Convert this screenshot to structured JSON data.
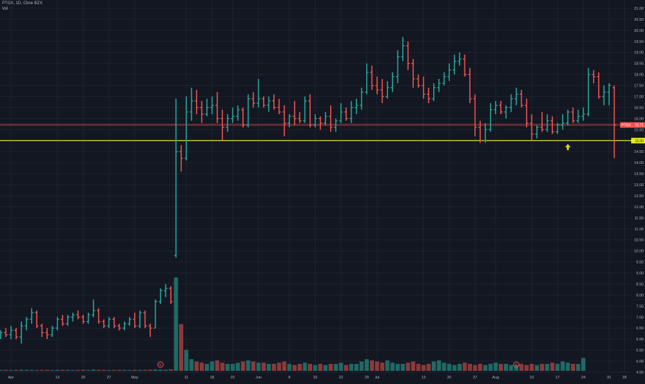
{
  "header": {
    "symbol_line": "PTGX, 1D, Cboe BZX",
    "volume_label": "Vol"
  },
  "colors": {
    "background": "#131722",
    "up": "#26a69a",
    "down": "#ef5350",
    "up_volume": "#1f6a65",
    "down_volume": "#8b3a3a",
    "support_line": "#e8ec1a",
    "grid": "#1f2331",
    "axis_text": "#b2b5be",
    "earnings_marker": "#ef5350"
  },
  "chart_data": {
    "type": "ohlc",
    "title": "",
    "y_axis": {
      "position": "right",
      "ylim": [
        4.5,
        21.25
      ],
      "ticks": [
        4.5,
        5.0,
        5.5,
        6.0,
        6.5,
        7.0,
        7.5,
        8.0,
        8.5,
        9.0,
        9.5,
        10.0,
        10.5,
        11.0,
        11.5,
        12.0,
        12.5,
        13.0,
        13.5,
        14.0,
        14.5,
        15.0,
        15.5,
        16.0,
        16.5,
        17.0,
        17.5,
        18.0,
        18.5,
        19.0,
        19.5,
        20.0,
        20.5,
        21.0
      ]
    },
    "x_axis": {
      "tick_labels": [
        {
          "label": "Apr",
          "bar": 2
        },
        {
          "label": "13",
          "bar": 11
        },
        {
          "label": "20",
          "bar": 16
        },
        {
          "label": "27",
          "bar": 21
        },
        {
          "label": "May",
          "bar": 26
        },
        {
          "label": "11",
          "bar": 36
        },
        {
          "label": "18",
          "bar": 41
        },
        {
          "label": "22",
          "bar": 45
        },
        {
          "label": "Jun",
          "bar": 50
        },
        {
          "label": "8",
          "bar": 56
        },
        {
          "label": "15",
          "bar": 61
        },
        {
          "label": "22",
          "bar": 66
        },
        {
          "label": "29",
          "bar": 71
        },
        {
          "label": "Jul",
          "bar": 73
        },
        {
          "label": "13",
          "bar": 82
        },
        {
          "label": "20",
          "bar": 87
        },
        {
          "label": "27",
          "bar": 92
        },
        {
          "label": "Aug",
          "bar": 96
        },
        {
          "label": "10",
          "bar": 103
        },
        {
          "label": "17",
          "bar": 108
        },
        {
          "label": "24",
          "bar": 113
        },
        {
          "label": "31",
          "bar": 118
        },
        {
          "label": "28",
          "bar": 121
        }
      ]
    },
    "ohlc": [
      [
        6.2,
        6.4,
        6.0,
        6.3
      ],
      [
        6.3,
        6.5,
        6.1,
        6.2
      ],
      [
        6.2,
        6.6,
        6.0,
        6.4
      ],
      [
        6.4,
        6.5,
        6.0,
        6.1
      ],
      [
        6.1,
        6.8,
        5.8,
        6.6
      ],
      [
        6.6,
        7.0,
        6.4,
        6.9
      ],
      [
        6.9,
        7.4,
        6.7,
        7.2
      ],
      [
        7.2,
        7.3,
        6.5,
        6.6
      ],
      [
        6.6,
        6.7,
        6.1,
        6.3
      ],
      [
        6.3,
        6.5,
        6.0,
        6.2
      ],
      [
        6.2,
        6.6,
        6.1,
        6.5
      ],
      [
        6.5,
        7.0,
        6.4,
        6.9
      ],
      [
        6.9,
        7.1,
        6.6,
        6.7
      ],
      [
        6.7,
        7.1,
        6.6,
        7.0
      ],
      [
        7.0,
        7.2,
        6.8,
        7.1
      ],
      [
        7.1,
        7.3,
        6.9,
        7.0
      ],
      [
        7.0,
        7.1,
        6.7,
        6.8
      ],
      [
        6.8,
        7.2,
        6.7,
        7.1
      ],
      [
        7.1,
        7.8,
        7.0,
        7.3
      ],
      [
        7.3,
        7.4,
        6.7,
        6.8
      ],
      [
        6.8,
        6.9,
        6.5,
        6.6
      ],
      [
        6.6,
        7.0,
        6.5,
        6.9
      ],
      [
        6.9,
        7.0,
        6.5,
        6.6
      ],
      [
        6.6,
        6.7,
        6.4,
        6.5
      ],
      [
        6.5,
        6.8,
        6.4,
        6.7
      ],
      [
        6.7,
        7.0,
        6.6,
        6.9
      ],
      [
        6.9,
        7.2,
        6.5,
        6.6
      ],
      [
        6.6,
        7.3,
        6.5,
        7.2
      ],
      [
        7.2,
        7.3,
        6.5,
        6.6
      ],
      [
        6.6,
        6.7,
        6.1,
        6.5
      ],
      [
        6.5,
        7.8,
        6.5,
        7.7
      ],
      [
        7.7,
        8.3,
        7.6,
        8.2
      ],
      [
        8.2,
        8.5,
        7.9,
        8.3
      ],
      [
        8.3,
        8.4,
        7.6,
        7.7
      ],
      [
        9.8,
        16.9,
        9.7,
        14.5
      ],
      [
        14.5,
        14.8,
        13.6,
        14.2
      ],
      [
        14.2,
        17.0,
        14.1,
        16.3
      ],
      [
        16.3,
        17.4,
        15.9,
        16.8
      ],
      [
        16.8,
        17.3,
        16.2,
        16.5
      ],
      [
        16.5,
        16.8,
        15.8,
        16.2
      ],
      [
        16.2,
        16.9,
        16.1,
        16.5
      ],
      [
        16.5,
        17.0,
        16.2,
        16.6
      ],
      [
        16.6,
        17.2,
        15.8,
        16.0
      ],
      [
        16.0,
        16.4,
        15.0,
        15.6
      ],
      [
        15.6,
        16.2,
        15.4,
        16.0
      ],
      [
        16.0,
        16.5,
        15.8,
        16.1
      ],
      [
        16.1,
        16.6,
        15.9,
        16.4
      ],
      [
        16.4,
        16.5,
        15.6,
        15.7
      ],
      [
        15.7,
        17.1,
        15.6,
        16.9
      ],
      [
        16.9,
        17.2,
        16.5,
        16.7
      ],
      [
        16.7,
        17.8,
        16.5,
        16.9
      ],
      [
        16.9,
        17.0,
        16.5,
        16.6
      ],
      [
        16.6,
        17.0,
        16.3,
        16.8
      ],
      [
        16.8,
        17.1,
        16.4,
        16.5
      ],
      [
        16.5,
        16.9,
        16.2,
        16.3
      ],
      [
        16.3,
        16.6,
        15.2,
        15.8
      ],
      [
        15.8,
        16.2,
        15.6,
        16.1
      ],
      [
        16.1,
        16.8,
        15.7,
        16.0
      ],
      [
        16.0,
        16.3,
        15.8,
        15.9
      ],
      [
        15.9,
        17.0,
        15.8,
        16.8
      ],
      [
        16.8,
        17.1,
        15.6,
        15.7
      ],
      [
        15.7,
        16.2,
        15.6,
        16.0
      ],
      [
        16.0,
        16.1,
        15.5,
        15.8
      ],
      [
        15.8,
        16.3,
        15.7,
        16.1
      ],
      [
        16.1,
        16.6,
        15.4,
        15.6
      ],
      [
        15.6,
        16.0,
        15.4,
        15.9
      ],
      [
        15.9,
        16.7,
        15.8,
        16.3
      ],
      [
        16.3,
        16.5,
        15.9,
        16.0
      ],
      [
        16.0,
        16.8,
        15.8,
        16.5
      ],
      [
        16.5,
        16.9,
        16.2,
        16.6
      ],
      [
        16.6,
        17.4,
        16.4,
        17.2
      ],
      [
        17.2,
        18.5,
        17.1,
        18.1
      ],
      [
        18.1,
        18.4,
        17.3,
        17.5
      ],
      [
        17.5,
        17.9,
        17.1,
        17.3
      ],
      [
        17.3,
        17.8,
        16.7,
        17.0
      ],
      [
        17.0,
        17.7,
        16.9,
        17.4
      ],
      [
        17.4,
        18.1,
        17.2,
        17.9
      ],
      [
        17.9,
        19.1,
        17.6,
        18.8
      ],
      [
        18.8,
        19.7,
        18.6,
        19.3
      ],
      [
        19.3,
        19.5,
        18.2,
        18.5
      ],
      [
        18.5,
        18.7,
        17.4,
        17.8
      ],
      [
        17.8,
        18.0,
        17.4,
        17.5
      ],
      [
        17.5,
        17.9,
        16.9,
        17.1
      ],
      [
        17.1,
        17.4,
        16.7,
        16.9
      ],
      [
        16.9,
        17.6,
        16.8,
        17.4
      ],
      [
        17.4,
        17.8,
        17.2,
        17.6
      ],
      [
        17.6,
        18.1,
        17.5,
        17.9
      ],
      [
        17.9,
        18.5,
        17.7,
        18.2
      ],
      [
        18.2,
        18.9,
        18.0,
        18.6
      ],
      [
        18.6,
        19.0,
        18.4,
        18.7
      ],
      [
        18.7,
        18.9,
        17.9,
        18.0
      ],
      [
        18.0,
        18.3,
        16.7,
        16.9
      ],
      [
        16.9,
        17.1,
        15.2,
        15.6
      ],
      [
        15.6,
        15.9,
        14.9,
        15.0
      ],
      [
        15.0,
        15.8,
        14.9,
        15.5
      ],
      [
        15.5,
        16.7,
        15.4,
        16.4
      ],
      [
        16.4,
        16.8,
        16.2,
        16.6
      ],
      [
        16.6,
        16.8,
        16.2,
        16.3
      ],
      [
        16.3,
        16.6,
        16.0,
        16.5
      ],
      [
        16.5,
        17.1,
        16.3,
        16.9
      ],
      [
        16.9,
        17.4,
        16.6,
        17.1
      ],
      [
        17.1,
        17.3,
        16.5,
        16.6
      ],
      [
        16.6,
        16.9,
        15.6,
        15.8
      ],
      [
        15.8,
        16.2,
        15.0,
        15.3
      ],
      [
        15.3,
        15.7,
        15.1,
        15.6
      ],
      [
        15.6,
        16.3,
        15.4,
        15.5
      ],
      [
        15.5,
        16.2,
        15.4,
        15.9
      ],
      [
        15.9,
        16.1,
        15.3,
        15.4
      ],
      [
        15.4,
        15.8,
        15.3,
        15.7
      ],
      [
        15.7,
        16.2,
        15.5,
        15.8
      ],
      [
        15.8,
        16.4,
        15.7,
        16.3
      ],
      [
        16.3,
        16.5,
        15.8,
        15.9
      ],
      [
        15.9,
        16.4,
        15.8,
        16.1
      ],
      [
        16.1,
        16.5,
        15.9,
        16.2
      ],
      [
        16.2,
        18.3,
        16.1,
        18.0
      ],
      [
        18.0,
        18.2,
        17.6,
        17.9
      ],
      [
        17.9,
        18.1,
        16.9,
        17.0
      ],
      [
        17.0,
        17.5,
        16.6,
        17.2
      ],
      [
        17.2,
        17.6,
        16.6,
        17.5
      ],
      [
        17.4,
        17.5,
        14.2,
        15.7
      ]
    ],
    "volume": [
      0.8,
      0.9,
      0.7,
      0.8,
      1.0,
      0.9,
      0.8,
      0.7,
      0.8,
      0.9,
      0.7,
      0.8,
      0.9,
      0.8,
      0.7,
      0.8,
      0.9,
      0.7,
      1.1,
      0.9,
      0.8,
      0.7,
      0.8,
      0.9,
      0.8,
      0.7,
      0.9,
      0.8,
      0.9,
      1.0,
      1.2,
      1.1,
      1.0,
      1.3,
      80,
      40,
      18,
      10,
      8,
      7,
      6,
      8,
      9,
      7,
      6,
      6,
      7,
      8,
      9,
      8,
      7,
      7,
      6,
      6,
      7,
      8,
      6,
      5,
      6,
      7,
      6,
      5,
      6,
      5,
      6,
      6,
      7,
      5,
      6,
      6,
      8,
      10,
      9,
      8,
      7,
      9,
      7,
      6,
      6,
      7,
      8,
      6,
      5,
      6,
      8,
      9,
      7,
      6,
      5,
      6,
      7,
      6,
      5,
      6,
      5,
      6,
      7,
      6,
      6,
      5,
      5,
      6,
      5,
      6,
      5,
      6,
      6,
      7,
      6,
      8,
      7,
      6,
      6,
      11
    ],
    "horizontal_lines": [
      {
        "price": 15.75,
        "style": "solid-thin",
        "color": "#ef5350"
      },
      {
        "price": 15.69,
        "style": "solid-thin",
        "color": "#ef5350"
      },
      {
        "price": 15.0,
        "style": "solid",
        "color": "#e8ec1a",
        "label": "15.00"
      }
    ],
    "last_price_label": {
      "text": "PTGX",
      "value": "15.71",
      "price": 15.71
    },
    "earnings_markers": [
      {
        "bar": 31,
        "label": "E"
      },
      {
        "bar": 100,
        "label": "E"
      }
    ],
    "arrow_marker": {
      "bar": 110,
      "price": 14.7,
      "direction": "up"
    },
    "grid": true,
    "legend": "none"
  }
}
